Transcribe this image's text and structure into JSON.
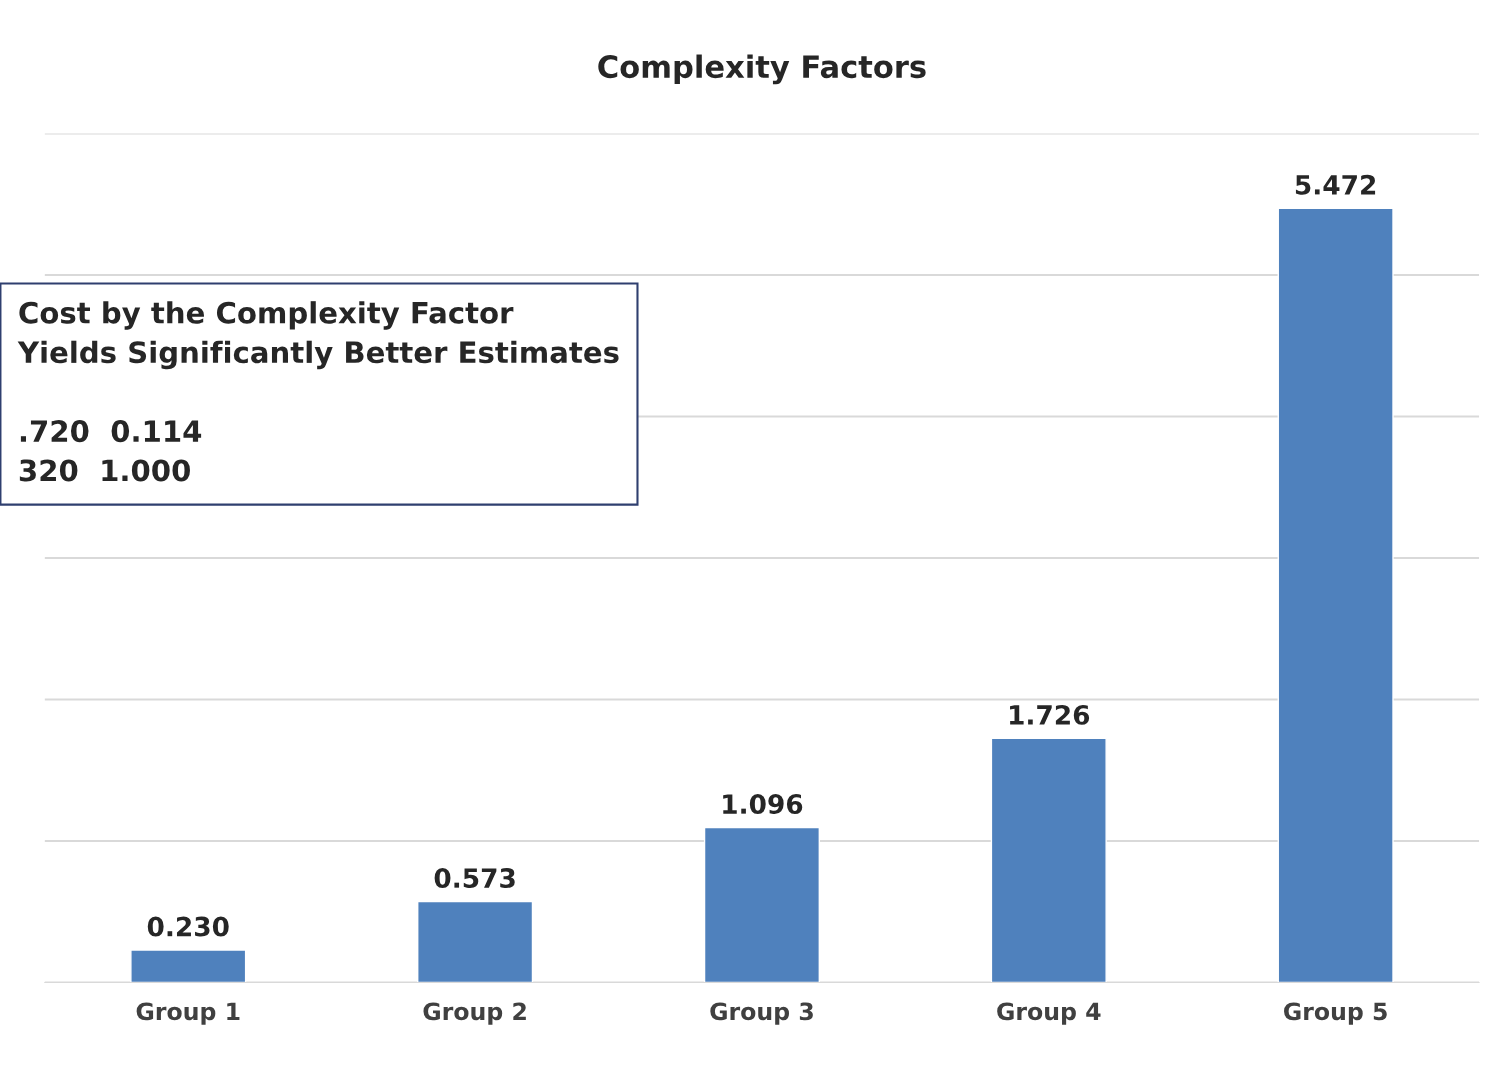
{
  "chart_data": {
    "type": "bar",
    "title": "Complexity Factors",
    "categories": [
      "Group 1",
      "Group 2",
      "Group 3",
      "Group 4",
      "Group 5"
    ],
    "values": [
      0.23,
      0.573,
      1.096,
      1.726,
      5.472
    ],
    "color": "#4f81bd",
    "value_labels": [
      "0.230",
      "0.573",
      "1.096",
      "1.726",
      "5.472"
    ],
    "ylim": [
      0,
      6
    ],
    "yticks": [
      {
        "value": 0,
        "label": null
      },
      {
        "value": 1,
        "label": null
      },
      {
        "value": 2,
        "label": null
      },
      {
        "value": 3,
        "label": null
      },
      {
        "value": 4,
        "label": null
      },
      {
        "value": 5,
        "label": null
      },
      {
        "value": 6,
        "label": null
      }
    ],
    "tick_labels": "x",
    "grid": "y",
    "annotations": [
      "Cost by the Complexity Factor\nYields Significantly Better Estimates\n\n.720  0.114\n320  1.000"
    ]
  }
}
